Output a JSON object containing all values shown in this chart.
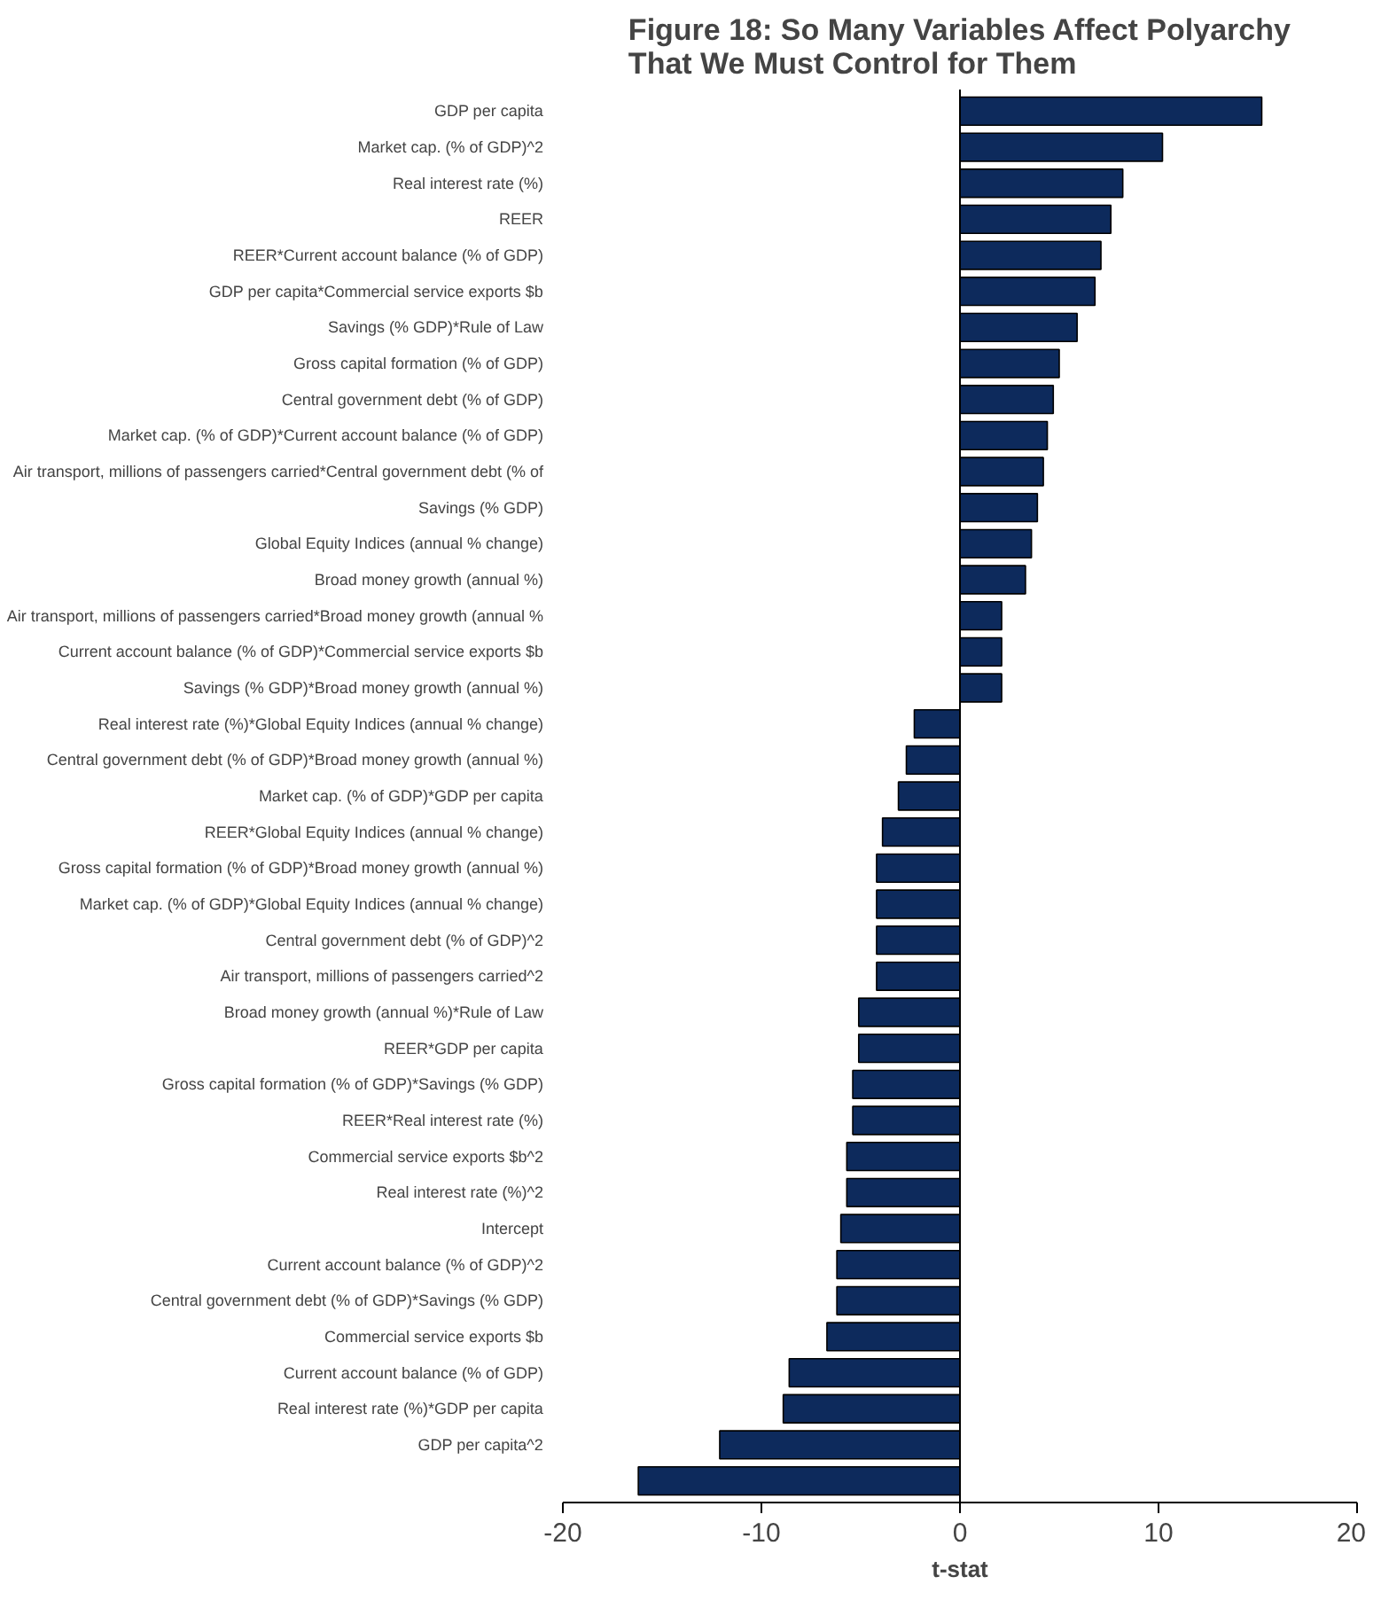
{
  "chart_data": {
    "type": "bar",
    "orientation": "horizontal",
    "title": "Figure 18: So Many Variables Affect Polyarchy\nThat We Must Control for Them",
    "xlabel": "t-stat",
    "color": "#0d2a5c",
    "categories": [
      "GDP per capita",
      "Market cap. (% of GDP)^2",
      "Real interest rate (%)",
      "REER",
      "REER*Current account balance (% of GDP)",
      "GDP per capita*Commercial service exports $b",
      "Savings (% GDP)*Rule of Law",
      "Gross capital formation (% of GDP)",
      "Central government debt (% of GDP)",
      "Market cap. (% of GDP)*Current account balance (% of GDP)",
      "Air transport, millions of passengers carried*Central government debt (% of",
      "Savings (% GDP)",
      "Global Equity Indices (annual % change)",
      "Broad money growth (annual %)",
      "Air transport, millions of passengers carried*Broad money growth (annual %",
      "Current account balance (% of GDP)*Commercial service exports $b",
      "Savings (% GDP)*Broad money growth (annual %)",
      "Real interest rate (%)*Global Equity Indices (annual % change)",
      "Central government debt (% of GDP)*Broad money growth (annual %)",
      "Market cap. (% of GDP)*GDP per capita",
      "REER*Global Equity Indices (annual % change)",
      "Gross capital formation (% of GDP)*Broad money growth (annual %)",
      "Market cap. (% of GDP)*Global Equity Indices (annual % change)",
      "Central government debt (% of GDP)^2",
      "Air transport, millions of passengers carried^2",
      "Broad money growth (annual %)*Rule of Law",
      "REER*GDP per capita",
      "Gross capital formation (% of GDP)*Savings (% GDP)",
      "REER*Real interest rate (%)",
      "Commercial service exports $b^2",
      "Real interest rate (%)^2",
      "Intercept",
      "Current account balance (% of GDP)^2",
      "Central government debt (% of GDP)*Savings (% GDP)",
      "Commercial service exports $b",
      "Current account balance (% of GDP)",
      "Real interest rate (%)*GDP per capita",
      "GDP per capita^2",
      null
    ],
    "values": [
      15.2,
      10.2,
      8.2,
      7.6,
      7.1,
      6.8,
      5.9,
      5.0,
      4.7,
      4.4,
      4.2,
      3.9,
      3.6,
      3.3,
      2.1,
      2.1,
      2.1,
      -2.3,
      -2.7,
      -3.1,
      -3.9,
      -4.2,
      -4.2,
      -4.2,
      -4.2,
      -5.1,
      -5.1,
      -5.4,
      -5.4,
      -5.7,
      -5.7,
      -6.0,
      -6.2,
      -6.2,
      -6.7,
      -8.6,
      -8.9,
      -12.1,
      -16.2
    ],
    "xlim": [
      -20,
      20
    ],
    "xticks": [
      -20,
      -10,
      0,
      10,
      20
    ]
  }
}
